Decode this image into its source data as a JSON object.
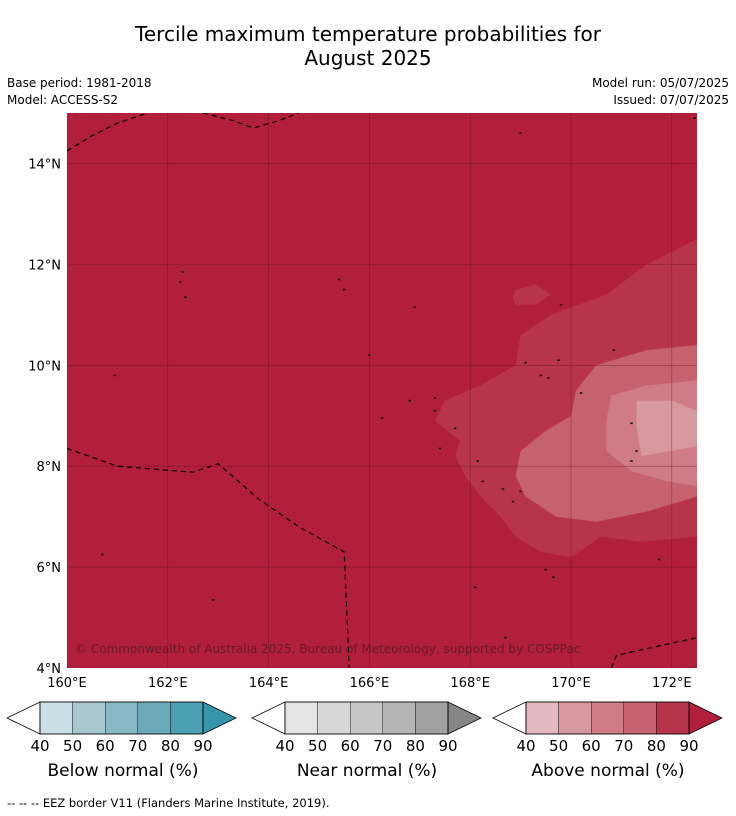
{
  "title": {
    "line1": "Tercile maximum temperature probabilities for",
    "line2": "August 2025"
  },
  "meta": {
    "base_period": "Base period: 1981-2018",
    "model": "Model: ACCESS-S2",
    "model_run": "Model run: 05/07/2025",
    "issued": "Issued: 07/07/2025"
  },
  "map": {
    "lon_range": [
      160,
      172.5
    ],
    "lat_range": [
      4,
      15
    ],
    "lon_ticks": [
      {
        "value": 160,
        "label": "160°E"
      },
      {
        "value": 162,
        "label": "162°E"
      },
      {
        "value": 164,
        "label": "164°E"
      },
      {
        "value": 166,
        "label": "166°E"
      },
      {
        "value": 168,
        "label": "168°E"
      },
      {
        "value": 170,
        "label": "170°E"
      },
      {
        "value": 172,
        "label": "172°E"
      }
    ],
    "lat_ticks": [
      {
        "value": 4,
        "label": "4°N"
      },
      {
        "value": 6,
        "label": "6°N"
      },
      {
        "value": 8,
        "label": "8°N"
      },
      {
        "value": 10,
        "label": "10°N"
      },
      {
        "value": 12,
        "label": "12°N"
      },
      {
        "value": 14,
        "label": "14°N"
      }
    ],
    "background_category": "Above normal",
    "background_probability": 90,
    "copyright": "© Commonwealth of Australia 2025, Bureau of Meteorology, supported by COSPPac",
    "contours": [
      {
        "category": "Above normal",
        "probability": 80,
        "points": [
          [
            172.5,
            12.5
          ],
          [
            171.5,
            12.0
          ],
          [
            170.7,
            11.4
          ],
          [
            169.6,
            11.0
          ],
          [
            169.0,
            10.6
          ],
          [
            168.9,
            10.0
          ],
          [
            168.2,
            9.6
          ],
          [
            167.5,
            9.3
          ],
          [
            167.3,
            8.9
          ],
          [
            167.8,
            8.5
          ],
          [
            167.7,
            8.2
          ],
          [
            167.9,
            7.8
          ],
          [
            168.3,
            7.3
          ],
          [
            168.6,
            7.0
          ],
          [
            168.9,
            6.6
          ],
          [
            169.4,
            6.3
          ],
          [
            170.0,
            6.2
          ],
          [
            170.6,
            6.6
          ],
          [
            171.4,
            6.5
          ],
          [
            172.5,
            6.6
          ]
        ]
      },
      {
        "category": "Above normal",
        "probability": 70,
        "points": [
          [
            172.5,
            10.4
          ],
          [
            171.5,
            10.3
          ],
          [
            170.5,
            10.0
          ],
          [
            170.1,
            9.5
          ],
          [
            170.0,
            9.0
          ],
          [
            169.5,
            8.7
          ],
          [
            169.0,
            8.3
          ],
          [
            168.9,
            7.8
          ],
          [
            169.1,
            7.4
          ],
          [
            169.7,
            7.0
          ],
          [
            170.5,
            6.9
          ],
          [
            171.5,
            7.1
          ],
          [
            172.5,
            7.4
          ]
        ]
      },
      {
        "category": "Above normal",
        "probability": 60,
        "points": [
          [
            172.5,
            9.7
          ],
          [
            171.5,
            9.6
          ],
          [
            170.8,
            9.4
          ],
          [
            170.7,
            8.9
          ],
          [
            170.7,
            8.3
          ],
          [
            171.2,
            7.9
          ],
          [
            171.9,
            7.7
          ],
          [
            172.5,
            7.6
          ]
        ]
      },
      {
        "category": "Above normal",
        "probability": 50,
        "points": [
          [
            172.5,
            9.1
          ],
          [
            172.0,
            9.3
          ],
          [
            171.3,
            9.3
          ],
          [
            171.3,
            8.8
          ],
          [
            171.4,
            8.2
          ],
          [
            172.0,
            8.3
          ],
          [
            172.5,
            8.4
          ]
        ]
      },
      {
        "category": "Above normal",
        "probability": 80,
        "closed": true,
        "points": [
          [
            168.9,
            11.5
          ],
          [
            169.3,
            11.6
          ],
          [
            169.6,
            11.4
          ],
          [
            169.3,
            11.2
          ],
          [
            168.9,
            11.2
          ],
          [
            168.85,
            11.35
          ]
        ]
      }
    ],
    "eez_borders": [
      [
        [
          160.0,
          14.25
        ],
        [
          160.5,
          14.55
        ],
        [
          161.0,
          14.8
        ],
        [
          161.6,
          15.0
        ]
      ],
      [
        [
          162.7,
          15.0
        ],
        [
          163.3,
          14.85
        ],
        [
          163.7,
          14.7
        ],
        [
          164.2,
          14.85
        ],
        [
          164.6,
          15.0
        ]
      ],
      [
        [
          160.0,
          8.35
        ],
        [
          161.0,
          8.0
        ],
        [
          162.5,
          7.88
        ],
        [
          163.0,
          8.05
        ],
        [
          163.8,
          7.35
        ],
        [
          164.6,
          6.8
        ],
        [
          165.5,
          6.3
        ],
        [
          165.6,
          4.0
        ]
      ],
      [
        [
          170.8,
          4.0
        ],
        [
          170.9,
          4.25
        ],
        [
          171.8,
          4.45
        ],
        [
          172.5,
          4.6
        ]
      ]
    ],
    "islands": [
      [
        169.0,
        14.6
      ],
      [
        172.45,
        14.9
      ],
      [
        162.25,
        11.65
      ],
      [
        162.35,
        11.35
      ],
      [
        165.4,
        11.7
      ],
      [
        165.5,
        11.5
      ],
      [
        166.0,
        10.2
      ],
      [
        166.9,
        11.15
      ],
      [
        169.1,
        10.05
      ],
      [
        169.4,
        9.8
      ],
      [
        169.55,
        9.75
      ],
      [
        169.75,
        10.1
      ],
      [
        170.2,
        9.45
      ],
      [
        170.85,
        10.3
      ],
      [
        169.8,
        11.2
      ],
      [
        160.95,
        9.8
      ],
      [
        162.3,
        11.85
      ],
      [
        166.25,
        8.95
      ],
      [
        166.8,
        9.3
      ],
      [
        167.3,
        9.35
      ],
      [
        167.3,
        9.1
      ],
      [
        167.7,
        8.75
      ],
      [
        167.4,
        8.35
      ],
      [
        168.15,
        8.1
      ],
      [
        168.25,
        7.7
      ],
      [
        171.2,
        8.85
      ],
      [
        171.3,
        8.3
      ],
      [
        171.2,
        8.1
      ],
      [
        168.65,
        7.55
      ],
      [
        168.85,
        7.3
      ],
      [
        169.0,
        7.5
      ],
      [
        169.5,
        5.95
      ],
      [
        169.65,
        5.8
      ],
      [
        171.75,
        6.15
      ],
      [
        168.1,
        5.6
      ],
      [
        168.7,
        4.6
      ],
      [
        160.7,
        6.25
      ],
      [
        162.9,
        5.35
      ]
    ]
  },
  "legends": [
    {
      "label": "Below normal (%)",
      "colors": [
        "#c8e0e6",
        "#a7c8ce",
        "#88b8c3",
        "#6babb9",
        "#4aa0b1",
        "#3596a9"
      ],
      "ticks": [
        "40",
        "50",
        "60",
        "70",
        "80",
        "90"
      ]
    },
    {
      "label": "Near normal (%)",
      "colors": [
        "#e5e5e5",
        "#d7d7d7",
        "#c7c7c7",
        "#b5b5b5",
        "#a1a1a1",
        "#868686"
      ],
      "ticks": [
        "40",
        "50",
        "60",
        "70",
        "80",
        "90"
      ]
    },
    {
      "label": "Above normal (%)",
      "colors": [
        "#e2b9be",
        "#d7989f",
        "#cf7c86",
        "#c5626d",
        "#b83449",
        "#b21f3a"
      ],
      "ticks": [
        "40",
        "50",
        "60",
        "70",
        "80",
        "90"
      ]
    }
  ],
  "footnote": "--  --  -- EEZ border V11 (Flanders Marine Institute, 2019)."
}
